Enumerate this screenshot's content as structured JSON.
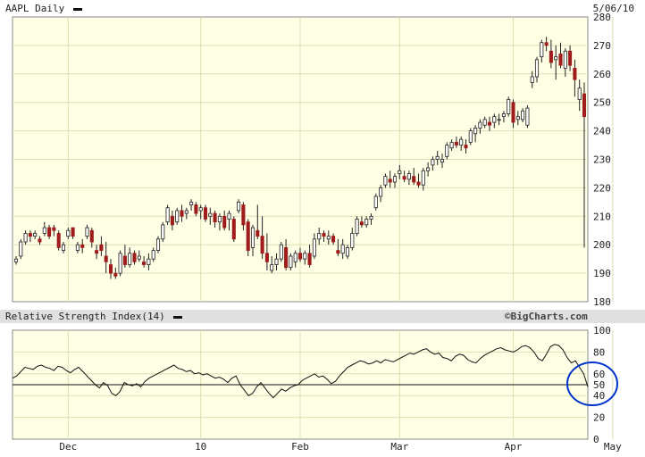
{
  "header": {
    "symbol_label": "AAPL Daily",
    "date_label": "5/06/10"
  },
  "rsi_panel": {
    "title": "Relative Strength Index(14)",
    "watermark": "©BigCharts.com"
  },
  "colors": {
    "plot_bg": "#ffffe6",
    "grid": "#dedeb0",
    "up_candle": "#ffffff",
    "down_candle": "#a01c1c",
    "candle_outline": "#222222",
    "rsi_line": "#111111",
    "highlight_circle": "#0033cc",
    "panel_bar": "#e0e0e0"
  },
  "chart_data": [
    {
      "type": "candlestick",
      "title": "AAPL Daily",
      "ylim": [
        180,
        280
      ],
      "yticks": [
        180,
        190,
        200,
        210,
        220,
        230,
        240,
        250,
        260,
        270,
        280
      ],
      "x_tick_labels": [
        "Dec",
        "10",
        "Feb",
        "Mar",
        "Apr",
        "May"
      ],
      "x_tick_positions": [
        11,
        39,
        60,
        81,
        105,
        126
      ],
      "candles": [
        [
          194,
          196,
          193,
          195
        ],
        [
          196,
          202,
          195,
          201
        ],
        [
          201,
          205,
          200,
          204
        ],
        [
          204,
          205,
          201,
          203
        ],
        [
          203,
          205,
          202,
          204
        ],
        [
          202,
          203,
          200,
          201
        ],
        [
          204,
          208,
          203,
          206
        ],
        [
          206,
          207,
          202,
          203
        ],
        [
          206,
          207,
          203,
          205
        ],
        [
          204,
          205,
          198,
          199
        ],
        [
          198,
          201,
          197,
          200
        ],
        [
          203,
          206,
          202,
          205
        ],
        [
          206,
          206,
          202,
          203
        ],
        [
          198,
          201,
          197,
          200
        ],
        [
          200,
          202,
          197,
          199
        ],
        [
          203,
          207,
          202,
          206
        ],
        [
          205,
          206,
          199,
          201
        ],
        [
          198,
          200,
          195,
          197
        ],
        [
          200,
          203,
          196,
          198
        ],
        [
          196,
          201,
          190,
          194
        ],
        [
          193,
          195,
          188,
          190
        ],
        [
          190,
          192,
          188,
          189
        ],
        [
          190,
          198,
          189,
          197
        ],
        [
          196,
          200,
          192,
          193
        ],
        [
          193,
          199,
          192,
          197
        ],
        [
          197,
          198,
          193,
          194
        ],
        [
          195,
          198,
          194,
          196
        ],
        [
          194,
          196,
          192,
          193
        ],
        [
          193,
          197,
          191,
          195
        ],
        [
          195,
          199,
          194,
          198
        ],
        [
          198,
          203,
          197,
          202
        ],
        [
          202,
          208,
          201,
          207
        ],
        [
          208,
          214,
          207,
          213
        ],
        [
          210,
          212,
          205,
          207
        ],
        [
          208,
          213,
          207,
          212
        ],
        [
          212,
          214,
          208,
          210
        ],
        [
          211,
          213,
          209,
          212
        ],
        [
          214,
          216,
          212,
          215
        ],
        [
          214,
          215,
          210,
          211
        ],
        [
          212,
          214,
          209,
          213
        ],
        [
          213,
          214,
          208,
          209
        ],
        [
          210,
          213,
          207,
          211
        ],
        [
          211,
          212,
          206,
          208
        ],
        [
          208,
          211,
          205,
          210
        ],
        [
          210,
          212,
          205,
          206
        ],
        [
          209,
          212,
          205,
          211
        ],
        [
          209,
          210,
          201,
          202
        ],
        [
          212,
          216,
          211,
          215
        ],
        [
          214,
          215,
          205,
          207
        ],
        [
          208,
          209,
          196,
          198
        ],
        [
          199,
          207,
          196,
          206
        ],
        [
          205,
          214,
          202,
          203
        ],
        [
          203,
          210,
          195,
          197
        ],
        [
          197,
          204,
          191,
          194
        ],
        [
          191,
          196,
          190,
          193
        ],
        [
          193,
          197,
          191,
          195
        ],
        [
          195,
          201,
          194,
          200
        ],
        [
          199,
          202,
          191,
          192
        ],
        [
          192,
          197,
          191,
          196
        ],
        [
          194,
          198,
          192,
          197
        ],
        [
          197,
          199,
          194,
          195
        ],
        [
          195,
          198,
          193,
          197
        ],
        [
          197,
          200,
          192,
          193
        ],
        [
          196,
          204,
          195,
          202
        ],
        [
          202,
          206,
          200,
          204
        ],
        [
          204,
          205,
          201,
          203
        ],
        [
          202,
          205,
          200,
          203
        ],
        [
          203,
          204,
          200,
          201
        ],
        [
          198,
          202,
          196,
          197
        ],
        [
          197,
          202,
          195,
          200
        ],
        [
          196,
          200,
          195,
          199
        ],
        [
          199,
          206,
          198,
          204
        ],
        [
          204,
          210,
          203,
          209
        ],
        [
          208,
          210,
          206,
          207
        ],
        [
          207,
          210,
          206,
          209
        ],
        [
          209,
          211,
          207,
          210
        ],
        [
          213,
          218,
          212,
          217
        ],
        [
          217,
          221,
          215,
          220
        ],
        [
          221,
          225,
          220,
          224
        ],
        [
          223,
          226,
          220,
          222
        ],
        [
          222,
          225,
          220,
          224
        ],
        [
          225,
          228,
          223,
          226
        ],
        [
          224,
          226,
          222,
          223
        ],
        [
          223,
          226,
          221,
          225
        ],
        [
          224,
          227,
          221,
          222
        ],
        [
          222,
          225,
          220,
          221
        ],
        [
          221,
          227,
          219,
          226
        ],
        [
          226,
          229,
          224,
          227
        ],
        [
          228,
          231,
          226,
          230
        ],
        [
          230,
          233,
          228,
          231
        ],
        [
          229,
          232,
          227,
          230
        ],
        [
          231,
          236,
          230,
          235
        ],
        [
          234,
          237,
          233,
          236
        ],
        [
          236,
          238,
          234,
          235
        ],
        [
          235,
          238,
          233,
          237
        ],
        [
          235,
          237,
          232,
          234
        ],
        [
          236,
          241,
          235,
          240
        ],
        [
          239,
          242,
          236,
          241
        ],
        [
          241,
          244,
          239,
          243
        ],
        [
          242,
          245,
          241,
          244
        ],
        [
          243,
          245,
          240,
          242
        ],
        [
          243,
          246,
          241,
          245
        ],
        [
          244,
          246,
          242,
          244
        ],
        [
          245,
          247,
          243,
          246
        ],
        [
          246,
          252,
          245,
          251
        ],
        [
          250,
          251,
          241,
          243
        ],
        [
          244,
          247,
          242,
          245
        ],
        [
          244,
          248,
          243,
          247
        ],
        [
          242,
          249,
          241,
          248
        ],
        [
          257,
          261,
          255,
          259
        ],
        [
          259,
          266,
          257,
          265
        ],
        [
          266,
          272,
          264,
          271
        ],
        [
          271,
          273,
          268,
          270
        ],
        [
          268,
          272,
          262,
          264
        ],
        [
          265,
          270,
          258,
          266
        ],
        [
          267,
          271,
          262,
          263
        ],
        [
          262,
          269,
          259,
          268
        ],
        [
          268,
          270,
          261,
          263
        ],
        [
          262,
          265,
          252,
          258
        ],
        [
          251,
          258,
          247,
          255
        ],
        [
          253,
          257,
          199,
          245
        ]
      ]
    },
    {
      "type": "line",
      "title": "Relative Strength Index(14)",
      "ylim": [
        0,
        100
      ],
      "yticks": [
        0,
        20,
        40,
        50,
        60,
        80,
        100
      ],
      "reference_line": 50,
      "values": [
        56,
        58,
        62,
        66,
        65,
        64,
        67,
        68,
        66,
        65,
        63,
        67,
        66,
        63,
        61,
        64,
        66,
        62,
        58,
        54,
        50,
        47,
        52,
        49,
        42,
        40,
        44,
        52,
        50,
        49,
        51,
        48,
        53,
        56,
        58,
        60,
        62,
        64,
        66,
        68,
        65,
        64,
        62,
        63,
        60,
        61,
        59,
        60,
        58,
        56,
        57,
        55,
        52,
        56,
        58,
        50,
        45,
        40,
        42,
        48,
        52,
        47,
        42,
        38,
        42,
        46,
        44,
        47,
        49,
        50,
        54,
        56,
        58,
        60,
        57,
        58,
        55,
        51,
        53,
        58,
        62,
        66,
        68,
        70,
        72,
        71,
        69,
        70,
        72,
        70,
        73,
        72,
        71,
        73,
        75,
        77,
        79,
        78,
        80,
        82,
        83,
        80,
        78,
        79,
        75,
        74,
        72,
        76,
        78,
        77,
        73,
        71,
        70,
        74,
        77,
        79,
        81,
        83,
        84,
        82,
        81,
        80,
        82,
        85,
        86,
        84,
        80,
        74,
        72,
        78,
        85,
        87,
        86,
        82,
        75,
        70,
        72,
        66,
        60,
        48
      ],
      "annotation": "circled-latest-reading"
    }
  ]
}
